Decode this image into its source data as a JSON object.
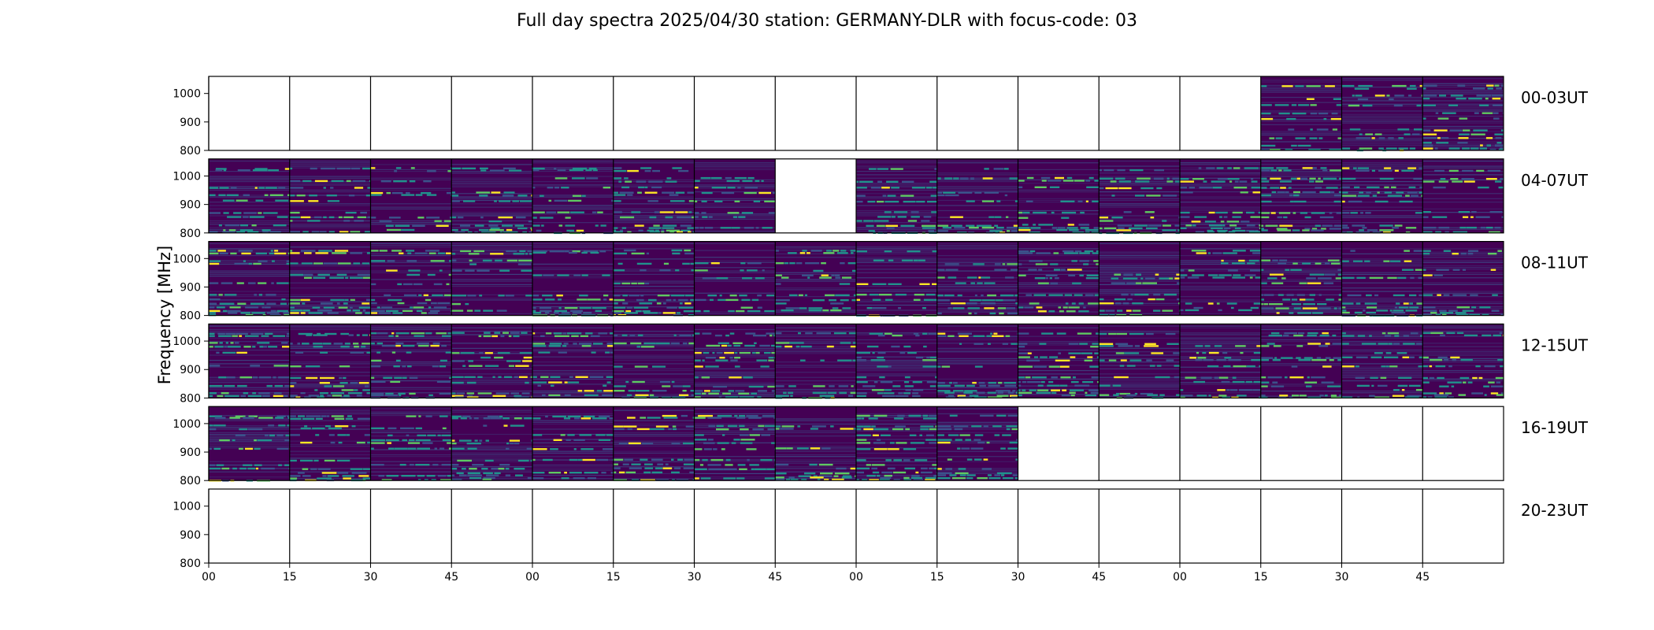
{
  "title": "Full day spectra 2025/04/30 station: GERMANY-DLR with focus-code: 03",
  "chart_data": {
    "type": "heatmap",
    "title": "Full day spectra 2025/04/30 station: GERMANY-DLR with focus-code: 03",
    "ylabel": "Frequency [MHz]",
    "xlabel": "",
    "ylim": [
      800,
      1060
    ],
    "y_ticks": [
      800,
      900,
      1000
    ],
    "x_tick_labels": [
      "00",
      "15",
      "30",
      "45",
      "00",
      "15",
      "30",
      "45",
      "00",
      "15",
      "30",
      "45",
      "00",
      "15",
      "30",
      "45"
    ],
    "rows": [
      {
        "label": "00-03UT",
        "panels_with_data": [
          false,
          false,
          false,
          false,
          false,
          false,
          false,
          false,
          false,
          false,
          false,
          false,
          false,
          true,
          true,
          true
        ]
      },
      {
        "label": "04-07UT",
        "panels_with_data": [
          true,
          true,
          true,
          true,
          true,
          true,
          true,
          false,
          true,
          true,
          true,
          true,
          true,
          true,
          true,
          true
        ]
      },
      {
        "label": "08-11UT",
        "panels_with_data": [
          true,
          true,
          true,
          true,
          true,
          true,
          true,
          true,
          true,
          true,
          true,
          true,
          true,
          true,
          true,
          true
        ]
      },
      {
        "label": "12-15UT",
        "panels_with_data": [
          true,
          true,
          true,
          true,
          true,
          true,
          true,
          true,
          true,
          true,
          true,
          true,
          true,
          true,
          true,
          true
        ]
      },
      {
        "label": "16-19UT",
        "panels_with_data": [
          true,
          true,
          true,
          true,
          true,
          true,
          true,
          true,
          true,
          true,
          false,
          false,
          false,
          false,
          false,
          false
        ]
      },
      {
        "label": "20-23UT",
        "panels_with_data": [
          false,
          false,
          false,
          false,
          false,
          false,
          false,
          false,
          false,
          false,
          false,
          false,
          false,
          false,
          false,
          false
        ]
      }
    ],
    "colormap": [
      "#440154",
      "#3b528b",
      "#21918c",
      "#5ec962",
      "#fde725"
    ],
    "background_color": "#440154",
    "grid": false
  }
}
